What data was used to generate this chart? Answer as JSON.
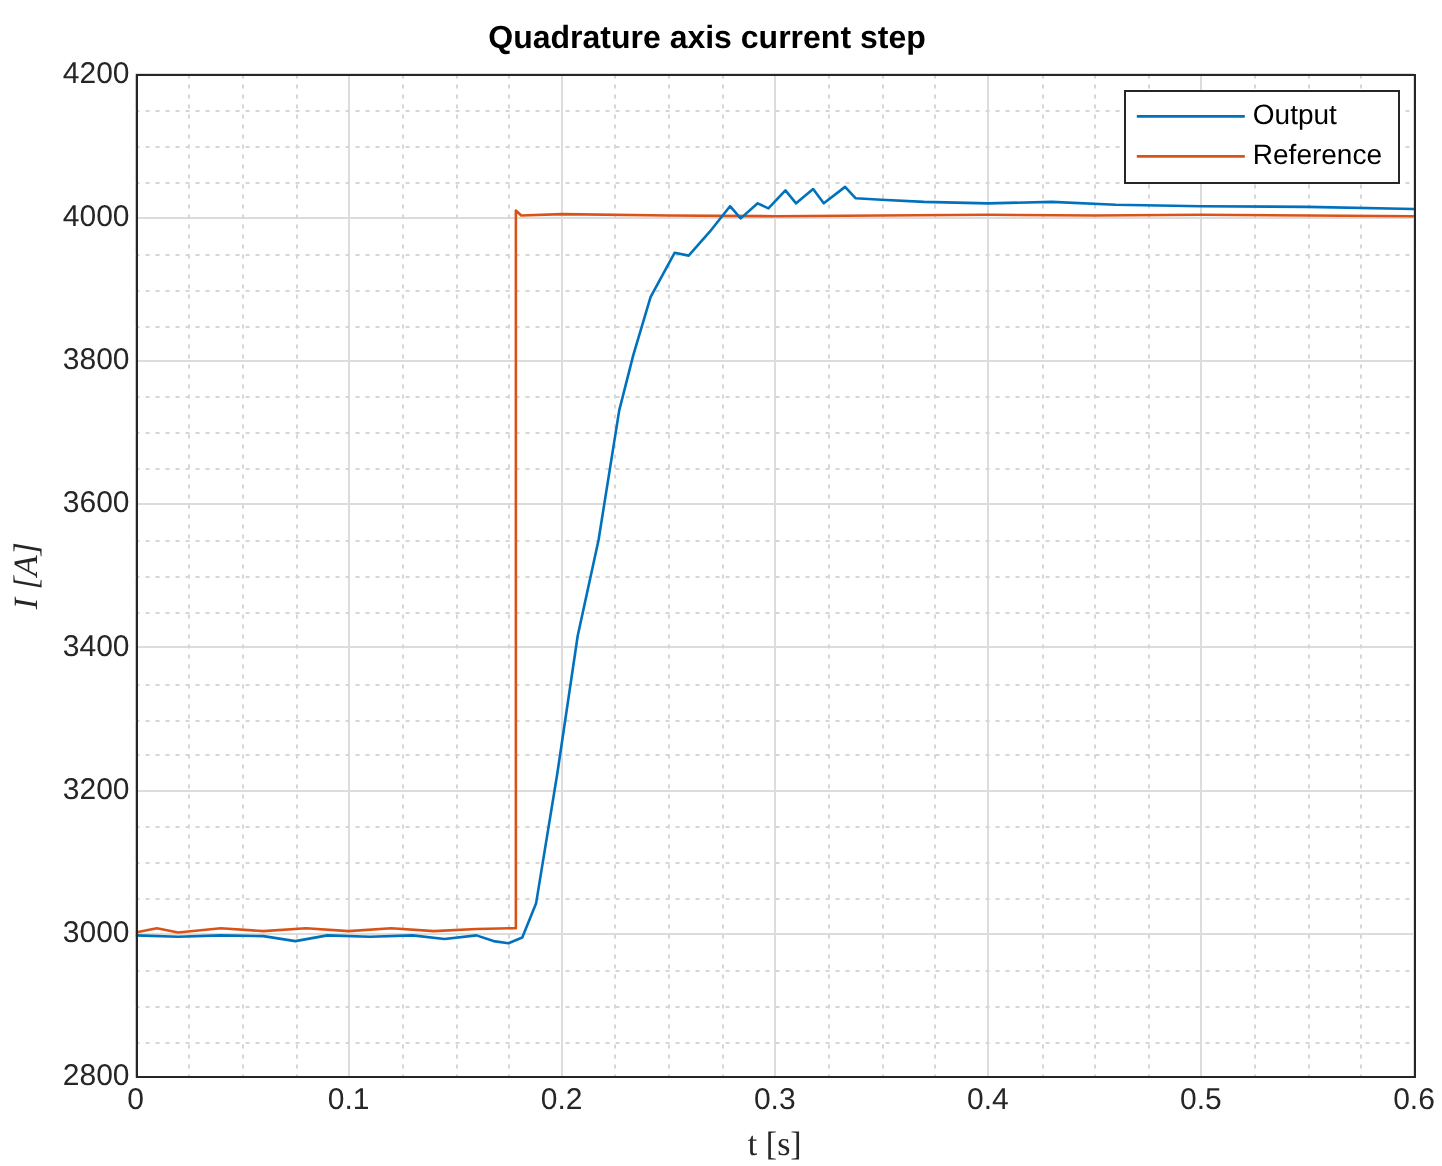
{
  "chart_data": {
    "type": "line",
    "title": "Quadrature axis current step",
    "xlabel": "t [s]",
    "ylabel": "I [A]",
    "xlim": [
      0,
      0.6
    ],
    "xticks": [
      0,
      0.1,
      0.2,
      0.3,
      0.4,
      0.5,
      0.6
    ],
    "ylim": [
      2800,
      4200
    ],
    "yticks": [
      2800,
      3000,
      3200,
      3400,
      3600,
      3800,
      4000,
      4200
    ],
    "grid": true,
    "legend": "top right",
    "marker": "none",
    "line_style": "solid",
    "series": [
      {
        "name": "Output",
        "color": "#0072bd",
        "x": [
          0,
          0.02,
          0.04,
          0.06,
          0.075,
          0.09,
          0.11,
          0.13,
          0.145,
          0.16,
          0.168,
          0.175,
          0.1815,
          0.188,
          0.198,
          0.2075,
          0.2173,
          0.227,
          0.2336,
          0.2417,
          0.253,
          0.2596,
          0.2694,
          0.279,
          0.284,
          0.292,
          0.297,
          0.305,
          0.31,
          0.318,
          0.323,
          0.333,
          0.338,
          0.35,
          0.37,
          0.4,
          0.43,
          0.46,
          0.5,
          0.55,
          0.6
        ],
        "values": [
          2998,
          2996,
          2998,
          2997,
          2990,
          2998,
          2996,
          2998,
          2993,
          2998,
          2990,
          2987,
          2995,
          3043,
          3225,
          3416,
          3550,
          3731,
          3808,
          3889,
          3951,
          3947,
          3980,
          4016,
          3999,
          4020,
          4013,
          4038,
          4020,
          4040,
          4020,
          4043,
          4027,
          4025,
          4022,
          4020,
          4022,
          4018,
          4016,
          4015,
          4012
        ]
      },
      {
        "name": "Reference",
        "color": "#d95319",
        "x": [
          0,
          0.01,
          0.02,
          0.04,
          0.06,
          0.08,
          0.1,
          0.12,
          0.14,
          0.16,
          0.178,
          0.1785,
          0.181,
          0.2,
          0.25,
          0.3,
          0.35,
          0.4,
          0.45,
          0.5,
          0.55,
          0.6
        ],
        "values": [
          3002,
          3008,
          3002,
          3008,
          3004,
          3008,
          3004,
          3008,
          3004,
          3007,
          3008,
          4010,
          4003,
          4005,
          4003,
          4002,
          4003,
          4004,
          4003,
          4004,
          4003,
          4002
        ]
      }
    ]
  }
}
